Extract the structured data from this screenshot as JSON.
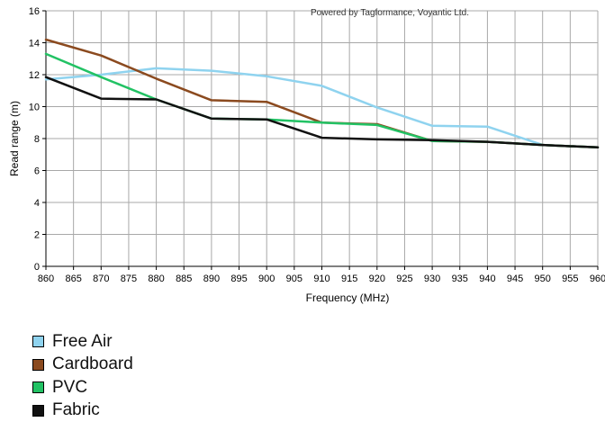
{
  "chart_data": {
    "type": "line",
    "credit": "Powered by Tagformance, Voyantic Ltd.",
    "xlabel": "Frequency (MHz)",
    "ylabel": "Read range (m)",
    "xlim": [
      860,
      960
    ],
    "ylim": [
      0,
      16
    ],
    "x_ticks": [
      860,
      865,
      870,
      875,
      880,
      885,
      890,
      895,
      900,
      905,
      910,
      915,
      920,
      925,
      930,
      935,
      940,
      945,
      950,
      955,
      960
    ],
    "y_ticks": [
      0,
      2,
      4,
      6,
      8,
      10,
      12,
      14,
      16
    ],
    "grid": true,
    "legend_position": "bottom-left",
    "series": [
      {
        "name": "Free Air",
        "color": "#8fd3ef",
        "x": [
          860,
          870,
          880,
          890,
          900,
          910,
          920,
          930,
          940,
          950,
          960
        ],
        "y": [
          11.7,
          12.0,
          12.4,
          12.25,
          11.9,
          11.3,
          9.95,
          8.8,
          8.75,
          7.6,
          7.45
        ]
      },
      {
        "name": "Cardboard",
        "color": "#8b4a1f",
        "x": [
          860,
          870,
          880,
          890,
          900,
          910,
          920,
          930,
          940,
          950,
          960
        ],
        "y": [
          14.2,
          13.2,
          11.75,
          10.4,
          10.3,
          9.0,
          8.9,
          7.85,
          7.8,
          7.6,
          7.45
        ]
      },
      {
        "name": "PVC",
        "color": "#22c264",
        "x": [
          860,
          870,
          880,
          890,
          900,
          910,
          920,
          930,
          940,
          950,
          960
        ],
        "y": [
          13.3,
          11.85,
          10.45,
          9.25,
          9.2,
          9.0,
          8.85,
          7.85,
          7.8,
          7.6,
          7.45
        ]
      },
      {
        "name": "Fabric",
        "color": "#111111",
        "x": [
          860,
          870,
          880,
          890,
          900,
          910,
          920,
          930,
          940,
          950,
          960
        ],
        "y": [
          11.85,
          10.5,
          10.45,
          9.25,
          9.2,
          8.05,
          7.95,
          7.9,
          7.8,
          7.6,
          7.45
        ]
      }
    ]
  }
}
